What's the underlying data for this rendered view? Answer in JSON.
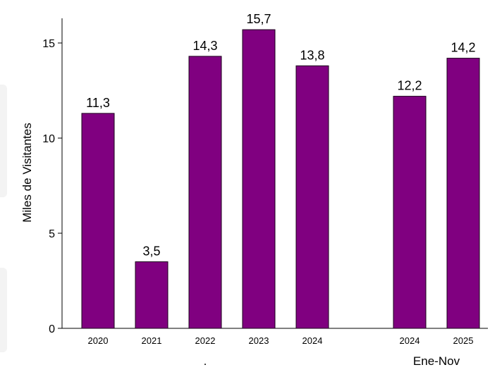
{
  "chart_data": {
    "type": "bar",
    "ylabel": "Miles de Visitantes",
    "ylim": [
      0,
      16.5
    ],
    "yticks": [
      0,
      5,
      10,
      15
    ],
    "bar_color": "#800080",
    "value_labels": [
      "11,3",
      "3,5",
      "14,3",
      "15,7",
      "13,8",
      "12,2",
      "14,2"
    ],
    "categories": [
      "2020",
      "2021",
      "2022",
      "2023",
      "2024",
      "2024",
      "2025"
    ],
    "values": [
      11.3,
      3.5,
      14.3,
      15.7,
      13.8,
      12.2,
      14.2
    ],
    "groups": [
      {
        "label": ".",
        "count": 5
      },
      {
        "label": "Ene-Nov",
        "count": 2
      }
    ],
    "grid": false
  }
}
